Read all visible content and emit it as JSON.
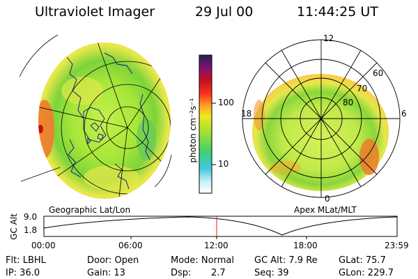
{
  "header": {
    "title": "Ultraviolet Imager",
    "date": "29 Jul 00",
    "time": "11:44:25 UT"
  },
  "left_panel": {
    "caption": "Geographic Lat/Lon"
  },
  "right_panel": {
    "caption": "Apex MLat/MLT",
    "lat_labels": [
      "80",
      "70",
      "60"
    ],
    "mlt_labels": {
      "top": "12",
      "left": "18",
      "right": "6",
      "bottom": "0"
    }
  },
  "colorbar": {
    "unit_label": "photon cm⁻²s⁻¹",
    "tick_100": "100",
    "tick_10": "10"
  },
  "altitude_plot": {
    "ylabel": "GC Alt",
    "y_top": "9.0",
    "y_bottom": "1.8",
    "x_ticks": [
      "00:00",
      "06:00",
      "12:00",
      "18:00",
      "23:59"
    ],
    "marker_color": "#e02020"
  },
  "info": {
    "flt": "Flt: LBHL",
    "ip": "IP: 36.0",
    "door": "Door: Open",
    "gain": "Gain: 13",
    "mode": "Mode: Normal",
    "dsp_label": "Dsp:",
    "dsp_value": "2.7",
    "gc_alt": "GC Alt: 7.9 Re",
    "seq": "Seq: 39",
    "glat": "GLat: 75.7",
    "glon": "GLon: 229.7"
  }
}
